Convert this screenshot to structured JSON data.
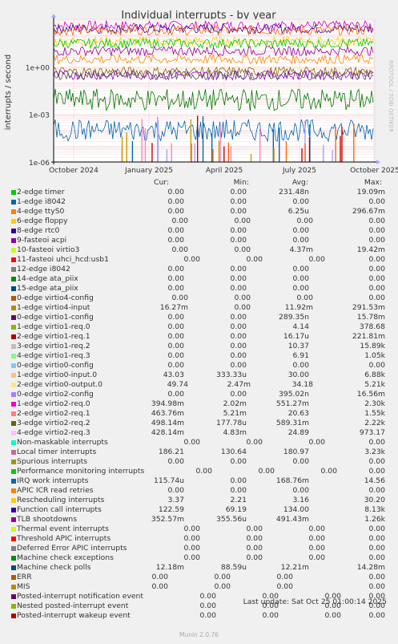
{
  "chart_data": {
    "type": "line",
    "title": "Individual interrupts - by year",
    "ylabel": "interrupts / second",
    "side_label": "RRDTOOL / TOBI OETIKER",
    "y_scale": "log",
    "ylim": [
      1e-06,
      1000.0
    ],
    "y_ticks": [
      {
        "value": 1,
        "label": "1e+00"
      },
      {
        "value": 0.001,
        "label": "1e-03"
      },
      {
        "value": 1e-06,
        "label": "1e-06"
      }
    ],
    "x_ticks": [
      "October 2024",
      "January 2025",
      "April 2025",
      "July 2025",
      "October 2025"
    ],
    "grid": true,
    "series_bands": [
      {
        "color": "#cc00cc",
        "level": 400
      },
      {
        "color": "#330099",
        "level": 250
      },
      {
        "color": "#ff6600",
        "level": 200
      },
      {
        "color": "#ffcc00",
        "level": 40
      },
      {
        "color": "#00cc00",
        "level": 30
      },
      {
        "color": "#990099",
        "level": 10
      },
      {
        "color": "#ff8800",
        "level": 3
      },
      {
        "color": "#996600",
        "level": 0.5
      },
      {
        "color": "#9900cc",
        "level": 0.3
      },
      {
        "color": "#555555",
        "level": 0.3
      },
      {
        "color": "#007700",
        "level": 0.0083
      },
      {
        "color": "#0066b3",
        "level": 0.0001
      }
    ]
  },
  "legend": {
    "headers": {
      "cur": "Cur:",
      "min": "Min:",
      "avg": "Avg:",
      "max": "Max:"
    },
    "rows": [
      {
        "name": "2-edge      timer",
        "color": "#00cc00",
        "cur": "0.00",
        "min": "0.00",
        "avg": "231.48n",
        "max": "19.09m",
        "shift": 0
      },
      {
        "name": "1-edge      i8042",
        "color": "#0066b3",
        "cur": "0.00",
        "min": "0.00",
        "avg": "0.00",
        "max": "0.00",
        "shift": 0
      },
      {
        "name": "4-edge      ttyS0",
        "color": "#ff8000",
        "cur": "0.00",
        "min": "0.00",
        "avg": "6.25u",
        "max": "296.67m",
        "shift": 0
      },
      {
        "name": "6-edge      floppy",
        "color": "#ffcc00",
        "cur": "0.00",
        "min": "0.00",
        "avg": "0.00",
        "max": "0.00",
        "shift": 5
      },
      {
        "name": "8-edge      rtc0",
        "color": "#330099",
        "cur": "0.00",
        "min": "0.00",
        "avg": "0.00",
        "max": "0.00",
        "shift": 0
      },
      {
        "name": "9-fasteoi   acpi",
        "color": "#990099",
        "cur": "0.00",
        "min": "0.00",
        "avg": "0.00",
        "max": "0.00",
        "shift": 0
      },
      {
        "name": "10-fasteoi   virtio3",
        "color": "#ccff00",
        "cur": "0.00",
        "min": "0.00",
        "avg": "4.37m",
        "max": "19.42m",
        "shift": 5
      },
      {
        "name": "11-fasteoi   uhci_hcd:usb1",
        "color": "#ff0000",
        "cur": "0.00",
        "min": "0.00",
        "avg": "0.00",
        "max": "0.00",
        "shift": 20
      },
      {
        "name": "12-edge      i8042",
        "color": "#808080",
        "cur": "0.00",
        "min": "0.00",
        "avg": "0.00",
        "max": "0.00",
        "shift": 0
      },
      {
        "name": "14-edge      ata_piix",
        "color": "#008f00",
        "cur": "0.00",
        "min": "0.00",
        "avg": "0.00",
        "max": "0.00",
        "shift": 0
      },
      {
        "name": "15-edge      ata_piix",
        "color": "#00487d",
        "cur": "0.00",
        "min": "0.00",
        "avg": "0.00",
        "max": "0.00",
        "shift": 0
      },
      {
        "name": "0-edge      virtio4-config",
        "color": "#b35a00",
        "cur": "0.00",
        "min": "0.00",
        "avg": "0.00",
        "max": "0.00",
        "shift": 5
      },
      {
        "name": "1-edge      virtio4-input",
        "color": "#b38f00",
        "cur": "16.27m",
        "min": "0.00",
        "avg": "11.92m",
        "max": "291.53m",
        "shift": 5
      },
      {
        "name": "0-edge      virtio1-config",
        "color": "#6b006b",
        "cur": "0.00",
        "min": "0.00",
        "avg": "289.35n",
        "max": "15.78m",
        "shift": 0
      },
      {
        "name": "1-edge      virtio1-req.0",
        "color": "#8fb300",
        "cur": "0.00",
        "min": "0.00",
        "avg": "4.14",
        "max": "378.68",
        "shift": 0
      },
      {
        "name": "2-edge      virtio1-req.1",
        "color": "#b30000",
        "cur": "0.00",
        "min": "0.00",
        "avg": "16.17u",
        "max": "221.81m",
        "shift": 0
      },
      {
        "name": "3-edge      virtio1-req.2",
        "color": "#bebebe",
        "cur": "0.00",
        "min": "0.00",
        "avg": "10.37",
        "max": "15.89k",
        "shift": 0
      },
      {
        "name": "4-edge      virtio1-req.3",
        "color": "#80ff80",
        "cur": "0.00",
        "min": "0.00",
        "avg": "6.91",
        "max": "1.05k",
        "shift": 0
      },
      {
        "name": "0-edge      virtio0-config",
        "color": "#80c9ff",
        "cur": "0.00",
        "min": "0.00",
        "avg": "0.00",
        "max": "0.00",
        "shift": 0
      },
      {
        "name": "1-edge      virtio0-input.0",
        "color": "#ffc080",
        "cur": "43.03",
        "min": "333.33u",
        "avg": "30.00",
        "max": "6.88k",
        "shift": 0
      },
      {
        "name": "2-edge      virtio0-output.0",
        "color": "#ffe680",
        "cur": "49.74",
        "min": "2.47m",
        "avg": "34.18",
        "max": "5.21k",
        "shift": 5
      },
      {
        "name": "0-edge      virtio2-config",
        "color": "#aa80ff",
        "cur": "0.00",
        "min": "0.00",
        "avg": "395.02n",
        "max": "16.56m",
        "shift": 0
      },
      {
        "name": "1-edge      virtio2-req.0",
        "color": "#ee00cc",
        "cur": "394.98m",
        "min": "2.02m",
        "avg": "551.27m",
        "max": "2.30k",
        "shift": 0
      },
      {
        "name": "2-edge      virtio2-req.1",
        "color": "#ff8080",
        "cur": "463.76m",
        "min": "5.21m",
        "avg": "20.63",
        "max": "1.55k",
        "shift": 0
      },
      {
        "name": "3-edge      virtio2-req.2",
        "color": "#666600",
        "cur": "498.14m",
        "min": "177.78u",
        "avg": "589.31m",
        "max": "2.22k",
        "shift": 0
      },
      {
        "name": "4-edge      virtio2-req.3",
        "color": "#ffbfff",
        "cur": "428.14m",
        "min": "4.83m",
        "avg": "24.89",
        "max": "973.17",
        "shift": 0
      },
      {
        "name": "Non-maskable interrupts",
        "color": "#00ffcc",
        "cur": "0.00",
        "min": "0.00",
        "avg": "0.00",
        "max": "0.00",
        "shift": 20
      },
      {
        "name": "Local timer interrupts",
        "color": "#cc6699",
        "cur": "186.21",
        "min": "130.64",
        "avg": "180.97",
        "max": "3.23k",
        "shift": 0
      },
      {
        "name": "Spurious interrupts",
        "color": "#999900",
        "cur": "0.00",
        "min": "0.00",
        "avg": "0.00",
        "max": "0.00",
        "shift": 0
      },
      {
        "name": "Performance monitoring interrupts",
        "color": "#00cc00",
        "cur": "0.00",
        "min": "0.00",
        "avg": "0.00",
        "max": "0.00",
        "shift": 35
      },
      {
        "name": "IRQ work interrupts",
        "color": "#0066b3",
        "cur": "115.74u",
        "min": "0.00",
        "avg": "168.76m",
        "max": "14.56",
        "shift": 0
      },
      {
        "name": "APIC ICR read retries",
        "color": "#ff8000",
        "cur": "0.00",
        "min": "0.00",
        "avg": "0.00",
        "max": "0.00",
        "shift": 0
      },
      {
        "name": "Rescheduling interrupts",
        "color": "#ffcc00",
        "cur": "3.37",
        "min": "2.21",
        "avg": "3.16",
        "max": "30.20",
        "shift": 0
      },
      {
        "name": "Function call interrupts",
        "color": "#330099",
        "cur": "122.59",
        "min": "69.19",
        "avg": "134.00",
        "max": "8.13k",
        "shift": 0
      },
      {
        "name": "TLB shootdowns",
        "color": "#990099",
        "cur": "352.57m",
        "min": "355.56u",
        "avg": "491.43m",
        "max": "1.26k",
        "shift": 0
      },
      {
        "name": "Thermal event interrupts",
        "color": "#ccff00",
        "cur": "0.00",
        "min": "0.00",
        "avg": "0.00",
        "max": "0.00",
        "shift": 20
      },
      {
        "name": "Threshold APIC interrupts",
        "color": "#ff0000",
        "cur": "0.00",
        "min": "0.00",
        "avg": "0.00",
        "max": "0.00",
        "shift": 20
      },
      {
        "name": "Deferred Error APIC interrupts",
        "color": "#808080",
        "cur": "0.00",
        "min": "0.00",
        "avg": "0.00",
        "max": "0.00",
        "shift": 20
      },
      {
        "name": "Machine check exceptions",
        "color": "#008f00",
        "cur": "0.00",
        "min": "0.00",
        "avg": "0.00",
        "max": "0.00",
        "shift": 20
      },
      {
        "name": "Machine check polls",
        "color": "#00487d",
        "cur": "12.18m",
        "min": "88.59u",
        "avg": "12.21m",
        "max": "14.28m",
        "shift": 0
      },
      {
        "name": "ERR",
        "color": "#b35a00",
        "cur": "0.00",
        "min": "0.00",
        "avg": "0.00",
        "max": "0.00",
        "shift": -20
      },
      {
        "name": "MIS",
        "color": "#b38f00",
        "cur": "0.00",
        "min": "0.00",
        "avg": "0.00",
        "max": "0.00",
        "shift": -20
      },
      {
        "name": "Posted-interrupt notification event",
        "color": "#6b006b",
        "cur": "0.00",
        "min": "0.00",
        "avg": "0.00",
        "max": "0.00",
        "shift": 40
      },
      {
        "name": "Nested posted-interrupt event",
        "color": "#8fb300",
        "cur": "0.00",
        "min": "0.00",
        "avg": "0.00",
        "max": "0.00",
        "shift": 40
      },
      {
        "name": "Posted-interrupt wakeup event",
        "color": "#b30000",
        "cur": "0.00",
        "min": "0.00",
        "avg": "0.00",
        "max": "0.00",
        "shift": 40
      }
    ]
  },
  "footer": {
    "last_update": "Last update: Sat Oct 25 01:00:14 2025",
    "version": "Munin 2.0.76"
  }
}
